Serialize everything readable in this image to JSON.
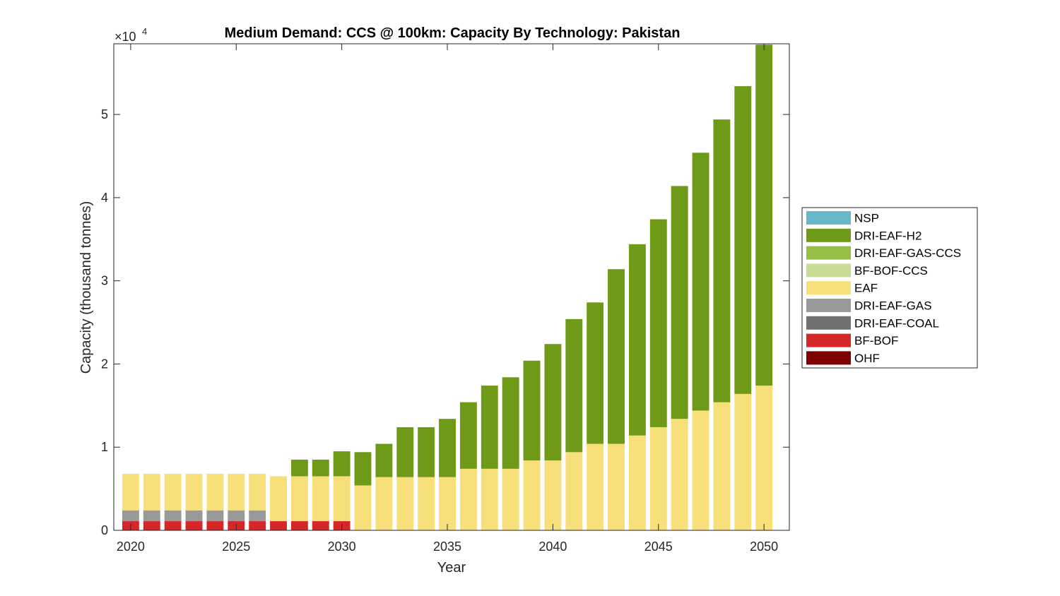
{
  "chart_data": {
    "type": "bar",
    "stacked": true,
    "title": "Medium Demand: CCS @ 100km: Capacity By Technology: Pakistan",
    "xlabel": "Year",
    "ylabel": "Capacity (thousand tonnes)",
    "y_exponent_label": "×10",
    "y_exponent": "4",
    "xlim": [
      2019.2,
      2051.2
    ],
    "ylim": [
      0,
      58500
    ],
    "x_ticks": [
      2020,
      2025,
      2030,
      2035,
      2040,
      2045,
      2050
    ],
    "y_ticks": [
      0,
      10000,
      20000,
      30000,
      40000,
      50000
    ],
    "y_tick_labels": [
      "0",
      "1",
      "2",
      "3",
      "4",
      "5"
    ],
    "grid": false,
    "legend_position": "outside-right",
    "categories": [
      2020,
      2021,
      2022,
      2023,
      2024,
      2025,
      2026,
      2027,
      2028,
      2029,
      2030,
      2031,
      2032,
      2033,
      2034,
      2035,
      2036,
      2037,
      2038,
      2039,
      2040,
      2041,
      2042,
      2043,
      2044,
      2045,
      2046,
      2047,
      2048,
      2049,
      2050
    ],
    "series": [
      {
        "name": "OHF",
        "color": "#7f0000",
        "values": [
          0,
          0,
          0,
          0,
          0,
          0,
          0,
          0,
          0,
          0,
          0,
          0,
          0,
          0,
          0,
          0,
          0,
          0,
          0,
          0,
          0,
          0,
          0,
          0,
          0,
          0,
          0,
          0,
          0,
          0,
          0
        ]
      },
      {
        "name": "BF-BOF",
        "color": "#d62728",
        "values": [
          1100,
          1100,
          1100,
          1100,
          1100,
          1100,
          1100,
          1100,
          1100,
          1100,
          1100,
          0,
          0,
          0,
          0,
          0,
          0,
          0,
          0,
          0,
          0,
          0,
          0,
          0,
          0,
          0,
          0,
          0,
          0,
          0,
          0
        ]
      },
      {
        "name": "DRI-EAF-COAL",
        "color": "#707070",
        "values": [
          0,
          0,
          0,
          0,
          0,
          0,
          0,
          0,
          0,
          0,
          0,
          0,
          0,
          0,
          0,
          0,
          0,
          0,
          0,
          0,
          0,
          0,
          0,
          0,
          0,
          0,
          0,
          0,
          0,
          0,
          0
        ]
      },
      {
        "name": "DRI-EAF-GAS",
        "color": "#999999",
        "values": [
          1300,
          1300,
          1300,
          1300,
          1300,
          1300,
          1300,
          0,
          0,
          0,
          0,
          0,
          0,
          0,
          0,
          0,
          0,
          0,
          0,
          0,
          0,
          0,
          0,
          0,
          0,
          0,
          0,
          0,
          0,
          0,
          0
        ]
      },
      {
        "name": "EAF",
        "color": "#f7df7a",
        "values": [
          4400,
          4400,
          4400,
          4400,
          4400,
          4400,
          4400,
          5400,
          5400,
          5400,
          5400,
          5400,
          6400,
          6400,
          6400,
          6400,
          7400,
          7400,
          7400,
          8400,
          8400,
          9400,
          10400,
          10400,
          11400,
          12400,
          13400,
          14400,
          15400,
          16400,
          17400
        ]
      },
      {
        "name": "BF-BOF-CCS",
        "color": "#c7dd96",
        "values": [
          0,
          0,
          0,
          0,
          0,
          0,
          0,
          0,
          0,
          0,
          0,
          0,
          0,
          0,
          0,
          0,
          0,
          0,
          0,
          0,
          0,
          0,
          0,
          0,
          0,
          0,
          0,
          0,
          0,
          0,
          0
        ]
      },
      {
        "name": "DRI-EAF-GAS-CCS",
        "color": "#97bf45",
        "values": [
          0,
          0,
          0,
          0,
          0,
          0,
          0,
          0,
          0,
          0,
          0,
          0,
          0,
          0,
          0,
          0,
          0,
          0,
          0,
          0,
          0,
          0,
          0,
          0,
          0,
          0,
          0,
          0,
          0,
          0,
          0
        ]
      },
      {
        "name": "DRI-EAF-H2",
        "color": "#6e9a17",
        "values": [
          0,
          0,
          0,
          0,
          0,
          0,
          0,
          0,
          2000,
          2000,
          3000,
          4000,
          4000,
          6000,
          6000,
          7000,
          8000,
          10000,
          11000,
          12000,
          14000,
          16000,
          17000,
          21000,
          23000,
          25000,
          28000,
          31000,
          34000,
          37000,
          41000
        ]
      },
      {
        "name": "NSP",
        "color": "#67b7cb",
        "values": [
          0,
          0,
          0,
          0,
          0,
          0,
          0,
          0,
          0,
          0,
          0,
          0,
          0,
          0,
          0,
          0,
          0,
          0,
          0,
          0,
          0,
          0,
          0,
          0,
          0,
          0,
          0,
          0,
          0,
          0,
          0
        ]
      }
    ],
    "legend_order": [
      "NSP",
      "DRI-EAF-H2",
      "DRI-EAF-GAS-CCS",
      "BF-BOF-CCS",
      "EAF",
      "DRI-EAF-GAS",
      "DRI-EAF-COAL",
      "BF-BOF",
      "OHF"
    ]
  }
}
